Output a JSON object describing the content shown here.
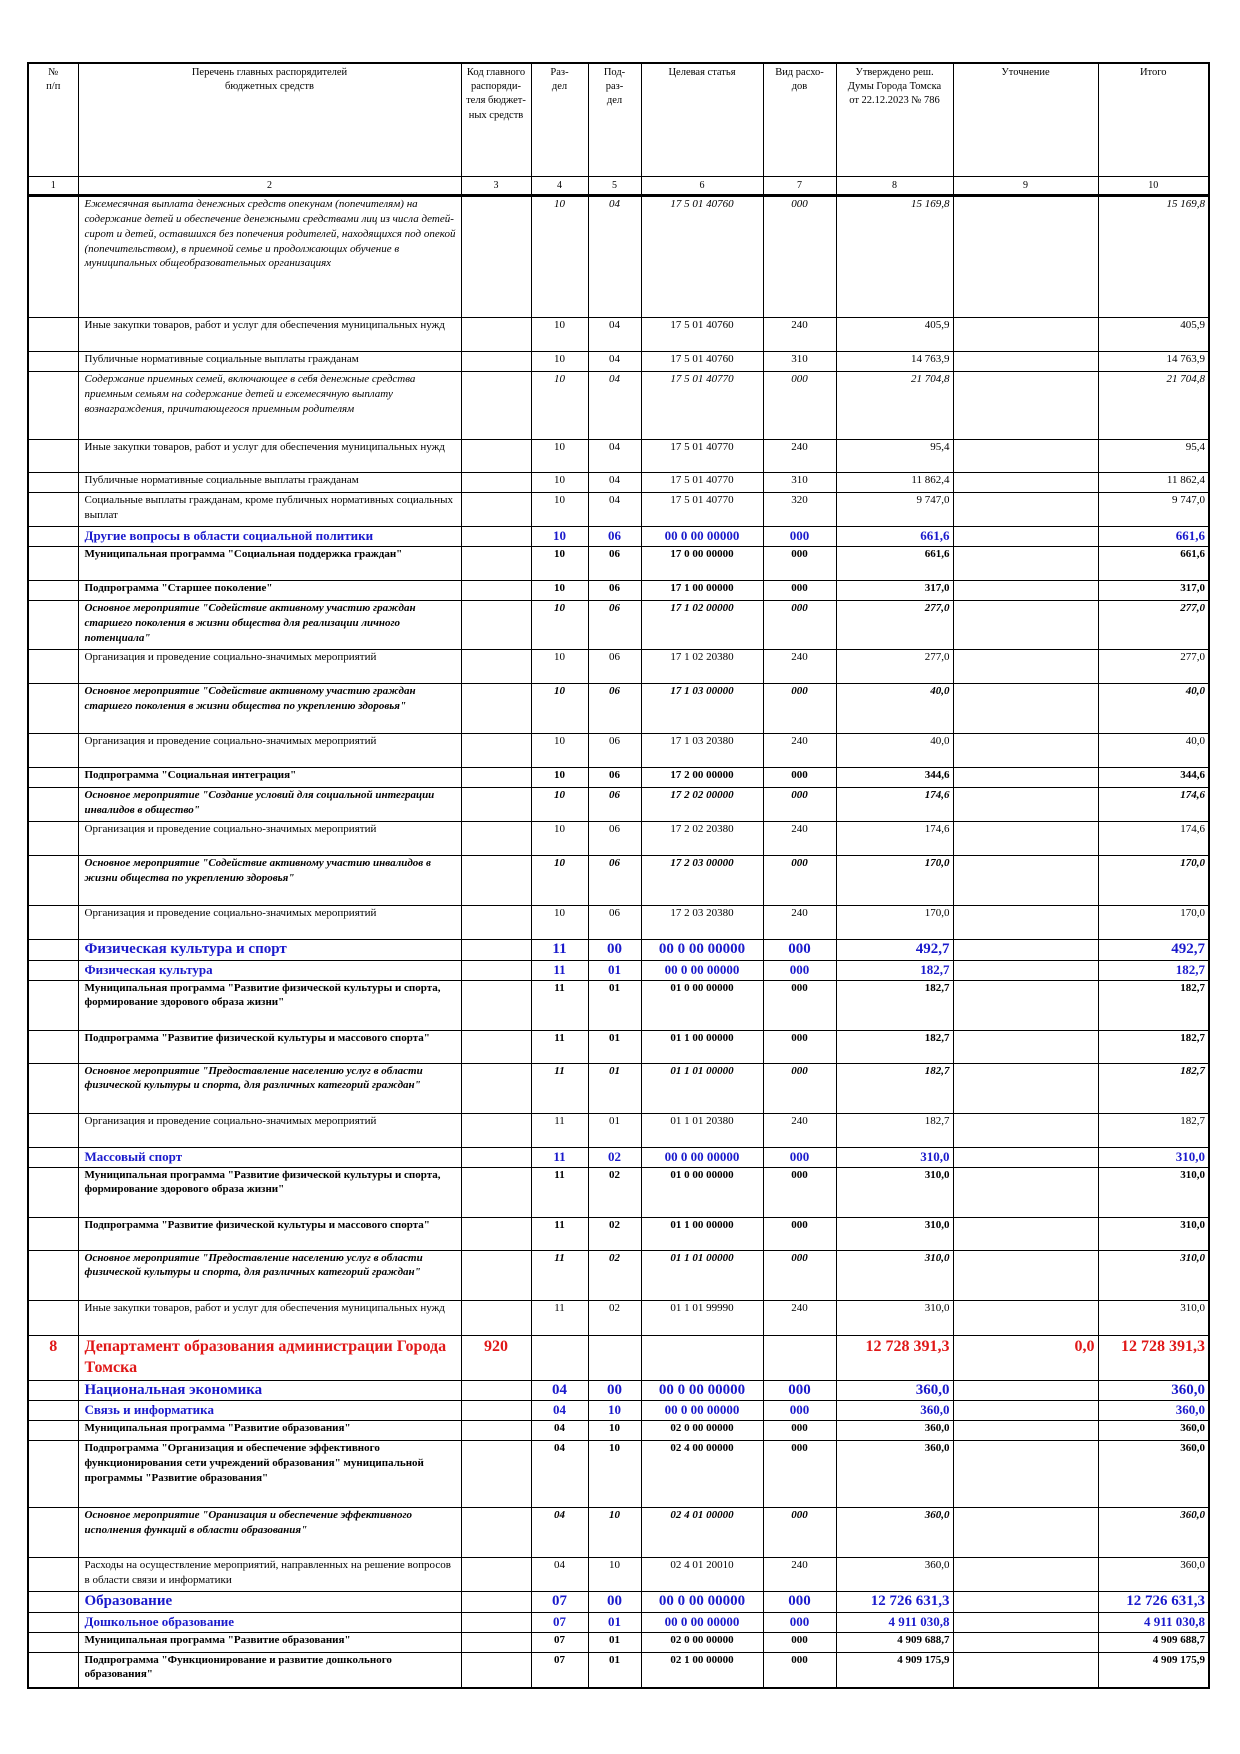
{
  "header": {
    "columns": [
      "№\nп/п",
      "Перечень главных распорядителей\nбюджетных средств",
      "Код главного\nраспоряди-\nтеля бюджет-\nных средств",
      "Раз-\nдел",
      "Под-\nраз-\nдел",
      "Целевая статья",
      "Вид расхо-\nдов",
      "Утверждено реш.\nДумы Города Томска\nот 22.12.2023 № 786",
      "Уточнение",
      "Итого"
    ],
    "numbers": [
      "1",
      "2",
      "3",
      "4",
      "5",
      "6",
      "7",
      "8",
      "9",
      "10"
    ]
  },
  "table": {
    "rows": [
      {
        "style": "italic",
        "cells": [
          null,
          "Ежемесячная выплата денежных средств опекунам (попечителям) на содержание детей и обеспечение денежными средствами лиц из числа детей-сирот и детей, оставшихся без попечения родителей, находящихся под опекой (попечительством), в приемной семье и продолжающих обучение в муниципальных общеобразовательных организациях",
          null,
          "10",
          "04",
          "17 5 01 40760",
          "000",
          "15 169,8",
          null,
          "15 169,8"
        ]
      },
      {
        "style": "normal",
        "cells": [
          null,
          "Иные закупки товаров, работ и услуг для обеспечения муниципальных нужд",
          null,
          "10",
          "04",
          "17 5 01 40760",
          "240",
          "405,9",
          null,
          "405,9"
        ]
      },
      {
        "style": "normal",
        "cells": [
          null,
          "Публичные нормативные социальные выплаты гражданам",
          null,
          "10",
          "04",
          "17 5 01 40760",
          "310",
          "14 763,9",
          null,
          "14 763,9"
        ]
      },
      {
        "style": "italic",
        "cells": [
          null,
          "Содержание приемных семей, включающее в себя денежные средства приемным семьям на содержание детей и ежемесячную выплату вознаграждения, причитающегося приемным родителям",
          null,
          "10",
          "04",
          "17 5 01 40770",
          "000",
          "21 704,8",
          null,
          "21 704,8"
        ]
      },
      {
        "style": "normal",
        "cells": [
          null,
          "Иные закупки товаров, работ и услуг для обеспечения муниципальных нужд",
          null,
          "10",
          "04",
          "17 5 01 40770",
          "240",
          "95,4",
          null,
          "95,4"
        ]
      },
      {
        "style": "normal",
        "cells": [
          null,
          "Публичные нормативные социальные выплаты гражданам",
          null,
          "10",
          "04",
          "17 5 01 40770",
          "310",
          "11 862,4",
          null,
          "11 862,4"
        ]
      },
      {
        "style": "normal",
        "cells": [
          null,
          "Социальные выплаты гражданам, кроме публичных нормативных социальных выплат",
          null,
          "10",
          "04",
          "17 5 01 40770",
          "320",
          "9 747,0",
          null,
          "9 747,0"
        ]
      },
      {
        "style": "subsection",
        "cells": [
          null,
          "Другие вопросы в области социальной политики",
          null,
          "10",
          "06",
          "00 0 00 00000",
          "000",
          "661,6",
          null,
          "661,6"
        ]
      },
      {
        "style": "bold",
        "cells": [
          null,
          "Муниципальная программа \"Социальная поддержка граждан\"",
          null,
          "10",
          "06",
          "17 0 00 00000",
          "000",
          "661,6",
          null,
          "661,6"
        ]
      },
      {
        "style": "bold",
        "cells": [
          null,
          "Подпрограмма \"Старшее поколение\"",
          null,
          "10",
          "06",
          "17 1 00 00000",
          "000",
          "317,0",
          null,
          "317,0"
        ]
      },
      {
        "style": "bold-italic",
        "cells": [
          null,
          "Основное мероприятие \"Содействие активному участию граждан старшего поколения в жизни общества для реализации личного потенциала\"",
          null,
          "10",
          "06",
          "17 1 02 00000",
          "000",
          "277,0",
          null,
          "277,0"
        ]
      },
      {
        "style": "normal",
        "cells": [
          null,
          "Организация и проведение социально-значимых мероприятий",
          null,
          "10",
          "06",
          "17 1 02 20380",
          "240",
          "277,0",
          null,
          "277,0"
        ]
      },
      {
        "style": "bold-italic",
        "cells": [
          null,
          "Основное мероприятие \"Содействие активному участию граждан старшего поколения в жизни общества по укреплению здоровья\"",
          null,
          "10",
          "06",
          "17 1 03 00000",
          "000",
          "40,0",
          null,
          "40,0"
        ]
      },
      {
        "style": "normal",
        "cells": [
          null,
          "Организация и проведение социально-значимых мероприятий",
          null,
          "10",
          "06",
          "17 1 03 20380",
          "240",
          "40,0",
          null,
          "40,0"
        ]
      },
      {
        "style": "bold",
        "cells": [
          null,
          "Подпрограмма \"Социальная интеграция\"",
          null,
          "10",
          "06",
          "17 2 00 00000",
          "000",
          "344,6",
          null,
          "344,6"
        ]
      },
      {
        "style": "bold-italic",
        "cells": [
          null,
          "Основное мероприятие \"Создание условий для социальной интеграции инвалидов в общество\"",
          null,
          "10",
          "06",
          "17 2 02 00000",
          "000",
          "174,6",
          null,
          "174,6"
        ]
      },
      {
        "style": "normal",
        "cells": [
          null,
          "Организация и проведение социально-значимых мероприятий",
          null,
          "10",
          "06",
          "17 2 02 20380",
          "240",
          "174,6",
          null,
          "174,6"
        ]
      },
      {
        "style": "bold-italic",
        "cells": [
          null,
          "Основное мероприятие \"Содействие активному участию инвалидов в жизни общества по укреплению здоровья\"",
          null,
          "10",
          "06",
          "17 2 03 00000",
          "000",
          "170,0",
          null,
          "170,0"
        ]
      },
      {
        "style": "normal",
        "cells": [
          null,
          "Организация и проведение социально-значимых мероприятий",
          null,
          "10",
          "06",
          "17 2 03 20380",
          "240",
          "170,0",
          null,
          "170,0"
        ]
      },
      {
        "style": "section",
        "cells": [
          null,
          "Физическая культура и спорт",
          null,
          "11",
          "00",
          "00 0 00 00000",
          "000",
          "492,7",
          null,
          "492,7"
        ]
      },
      {
        "style": "subsection",
        "cells": [
          null,
          "Физическая культура",
          null,
          "11",
          "01",
          "00 0 00 00000",
          "000",
          "182,7",
          null,
          "182,7"
        ]
      },
      {
        "style": "bold",
        "cells": [
          null,
          "Муниципальная программа \"Развитие физической культуры и спорта, формирование здорового образа жизни\"",
          null,
          "11",
          "01",
          "01 0 00 00000",
          "000",
          "182,7",
          null,
          "182,7"
        ]
      },
      {
        "style": "bold",
        "cells": [
          null,
          "Подпрограмма \"Развитие физической культуры и массового спорта\"",
          null,
          "11",
          "01",
          "01 1 00 00000",
          "000",
          "182,7",
          null,
          "182,7"
        ]
      },
      {
        "style": "bold-italic",
        "cells": [
          null,
          "Основное мероприятие \"Предоставление населению услуг в области физической культуры и спорта, для различных категорий граждан\"",
          null,
          "11",
          "01",
          "01 1 01 00000",
          "000",
          "182,7",
          null,
          "182,7"
        ]
      },
      {
        "style": "normal",
        "cells": [
          null,
          "Организация и проведение социально-значимых мероприятий",
          null,
          "11",
          "01",
          "01 1 01 20380",
          "240",
          "182,7",
          null,
          "182,7"
        ]
      },
      {
        "style": "subsection",
        "cells": [
          null,
          "Массовый спорт",
          null,
          "11",
          "02",
          "00 0 00 00000",
          "000",
          "310,0",
          null,
          "310,0"
        ]
      },
      {
        "style": "bold",
        "cells": [
          null,
          "Муниципальная программа \"Развитие физической культуры и спорта, формирование здорового образа жизни\"",
          null,
          "11",
          "02",
          "01 0 00 00000",
          "000",
          "310,0",
          null,
          "310,0"
        ]
      },
      {
        "style": "bold",
        "cells": [
          null,
          "Подпрограмма \"Развитие физической культуры и массового спорта\"",
          null,
          "11",
          "02",
          "01 1 00 00000",
          "000",
          "310,0",
          null,
          "310,0"
        ]
      },
      {
        "style": "bold-italic",
        "cells": [
          null,
          "Основное мероприятие \"Предоставление населению услуг в области физической культуры и спорта, для различных категорий граждан\"",
          null,
          "11",
          "02",
          "01 1 01 00000",
          "000",
          "310,0",
          null,
          "310,0"
        ]
      },
      {
        "style": "normal",
        "cells": [
          null,
          "Иные закупки товаров, работ и услуг для обеспечения муниципальных нужд",
          null,
          "11",
          "02",
          "01 1 01 99990",
          "240",
          "310,0",
          null,
          "310,0"
        ]
      },
      {
        "style": "department",
        "cells": [
          "8",
          "Департамент образования администрации Города Томска",
          "920",
          null,
          null,
          null,
          null,
          "12 728 391,3",
          "0,0",
          "12 728 391,3"
        ]
      },
      {
        "style": "section",
        "cells": [
          null,
          "Национальная экономика",
          null,
          "04",
          "00",
          "00 0 00 00000",
          "000",
          "360,0",
          null,
          "360,0"
        ]
      },
      {
        "style": "subsection",
        "cells": [
          null,
          "Связь и информатика",
          null,
          "04",
          "10",
          "00 0 00 00000",
          "000",
          "360,0",
          null,
          "360,0"
        ]
      },
      {
        "style": "bold",
        "cells": [
          null,
          "Муниципальная программа \"Развитие образования\"",
          null,
          "04",
          "10",
          "02 0 00 00000",
          "000",
          "360,0",
          null,
          "360,0"
        ]
      },
      {
        "style": "bold",
        "cells": [
          null,
          "Подпрограмма \"Организация и обеспечение эффективного функционирования сети учреждений образования\" муниципальной программы \"Развитие образования\"",
          null,
          "04",
          "10",
          "02 4 00 00000",
          "000",
          "360,0",
          null,
          "360,0"
        ]
      },
      {
        "style": "bold-italic",
        "cells": [
          null,
          "Основное мероприятие \"Оранизация и обеспечение эффективного исполнения функций в области образования\"",
          null,
          "04",
          "10",
          "02 4 01 00000",
          "000",
          "360,0",
          null,
          "360,0"
        ]
      },
      {
        "style": "normal",
        "cells": [
          null,
          "Расходы на осуществление мероприятий, направленных на решение вопросов в области связи и информатики",
          null,
          "04",
          "10",
          "02 4 01 20010",
          "240",
          "360,0",
          null,
          "360,0"
        ]
      },
      {
        "style": "section",
        "cells": [
          null,
          "Образование",
          null,
          "07",
          "00",
          "00 0 00 00000",
          "000",
          "12 726 631,3",
          null,
          "12 726 631,3"
        ]
      },
      {
        "style": "subsection",
        "cells": [
          null,
          "Дошкольное образование",
          null,
          "07",
          "01",
          "00 0 00 00000",
          "000",
          "4 911 030,8",
          null,
          "4 911 030,8"
        ]
      },
      {
        "style": "bold",
        "cells": [
          null,
          "Муниципальная программа \"Развитие образования\"",
          null,
          "07",
          "01",
          "02 0 00 00000",
          "000",
          "4 909 688,7",
          null,
          "4 909 688,7"
        ]
      },
      {
        "style": "bold",
        "cells": [
          null,
          "Подпрограмма \"Функционирование и развитие дошкольного образования\"",
          null,
          "07",
          "01",
          "02 1 00 00000",
          "000",
          "4 909 175,9",
          null,
          "4 909 175,9"
        ]
      }
    ]
  }
}
